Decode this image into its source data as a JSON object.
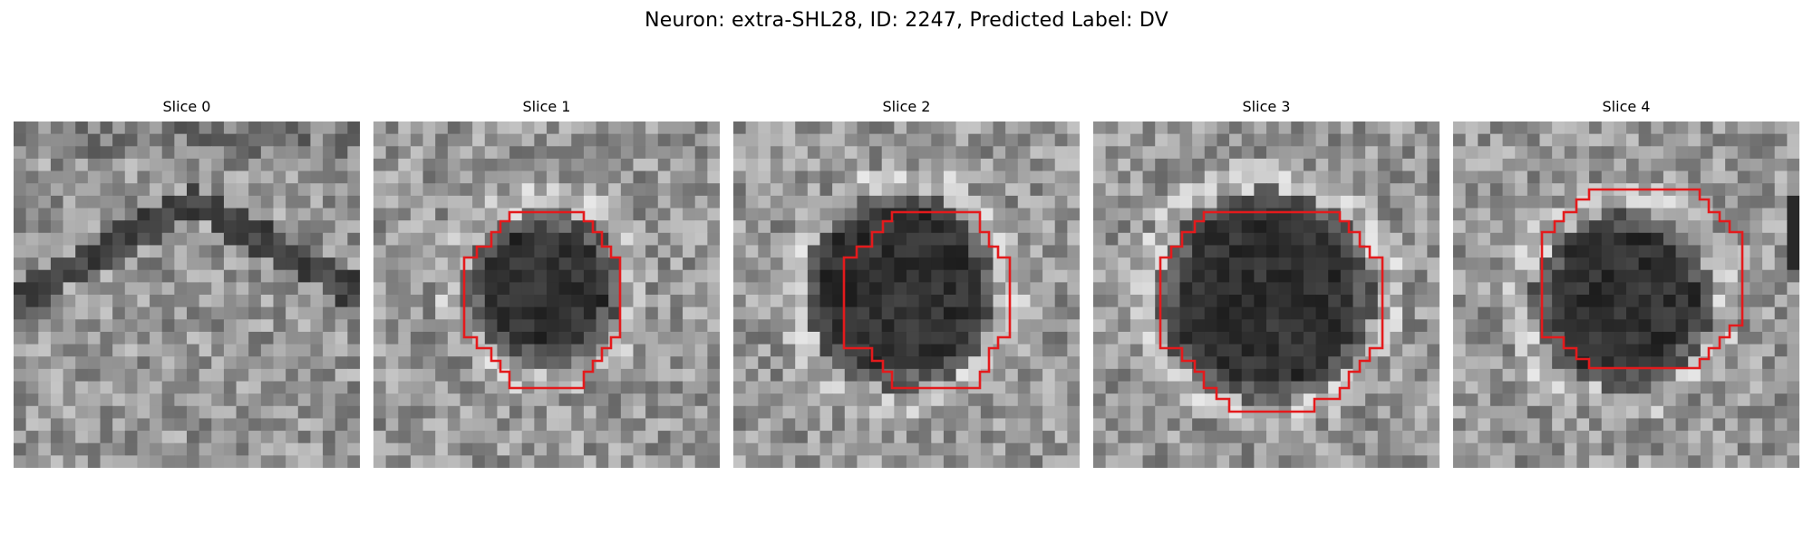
{
  "figure": {
    "title": "Neuron: extra-SHL28, ID: 2247, Predicted Label: DV"
  },
  "panels": [
    {
      "title": "Slice 0"
    },
    {
      "title": "Slice 1"
    },
    {
      "title": "Slice 2"
    },
    {
      "title": "Slice 3"
    },
    {
      "title": "Slice 4"
    }
  ],
  "colors": {
    "contour": "#e41a1c",
    "background": "#ffffff",
    "colormap": "gray"
  },
  "icons": [
    "grayscale-slice-image",
    "segmentation-contour"
  ]
}
